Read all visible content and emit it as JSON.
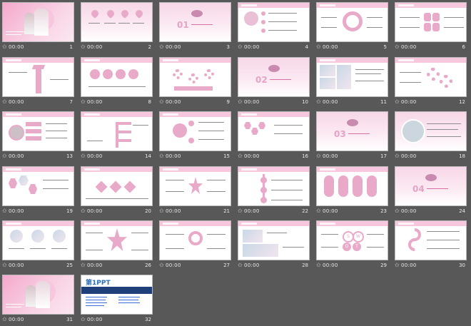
{
  "colors": {
    "background": "#585858",
    "accent": "#e9a9c8",
    "accent_dark": "#d98ab3",
    "text_light": "#e8e8e8"
  },
  "slides": [
    {
      "num": "1",
      "time": "00:00"
    },
    {
      "num": "2",
      "time": "00:00"
    },
    {
      "num": "3",
      "time": "00:00",
      "big": "01"
    },
    {
      "num": "4",
      "time": "00:00"
    },
    {
      "num": "5",
      "time": "00:00"
    },
    {
      "num": "6",
      "time": "00:00"
    },
    {
      "num": "7",
      "time": "00:00"
    },
    {
      "num": "8",
      "time": "00:00"
    },
    {
      "num": "9",
      "time": "00:00"
    },
    {
      "num": "10",
      "time": "00:00",
      "big": "02"
    },
    {
      "num": "11",
      "time": "00:00"
    },
    {
      "num": "12",
      "time": "00:00"
    },
    {
      "num": "13",
      "time": "00:00"
    },
    {
      "num": "14",
      "time": "00:00"
    },
    {
      "num": "15",
      "time": "00:00"
    },
    {
      "num": "16",
      "time": "00:00"
    },
    {
      "num": "17",
      "time": "00:00",
      "big": "03"
    },
    {
      "num": "18",
      "time": "00:00"
    },
    {
      "num": "19",
      "time": "00:00"
    },
    {
      "num": "20",
      "time": "00:00"
    },
    {
      "num": "21",
      "time": "00:00"
    },
    {
      "num": "22",
      "time": "00:00"
    },
    {
      "num": "23",
      "time": "00:00"
    },
    {
      "num": "24",
      "time": "00:00",
      "big": "04"
    },
    {
      "num": "25",
      "time": "00:00"
    },
    {
      "num": "26",
      "time": "00:00"
    },
    {
      "num": "27",
      "time": "00:00"
    },
    {
      "num": "28",
      "time": "00:00"
    },
    {
      "num": "29",
      "time": "00:00",
      "swot": [
        "S",
        "W",
        "O",
        "T"
      ]
    },
    {
      "num": "30",
      "time": "00:00"
    },
    {
      "num": "31",
      "time": "00:00"
    },
    {
      "num": "32",
      "time": "00:00",
      "logo": "第1PPT"
    }
  ]
}
